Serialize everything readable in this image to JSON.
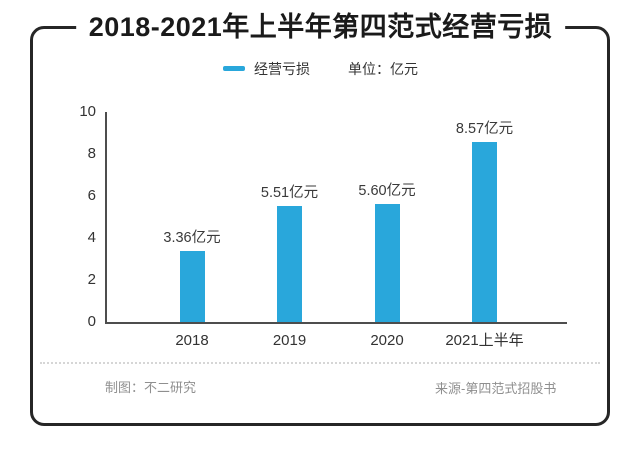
{
  "title": "2018-2021年上半年第四范式经营亏损",
  "legend": {
    "series_label": "经营亏损",
    "unit_label": "单位：亿元"
  },
  "chart_data": {
    "type": "bar",
    "title": "2018-2021年上半年第四范式经营亏损",
    "categories": [
      "2018",
      "2019",
      "2020",
      "2021上半年"
    ],
    "series": [
      {
        "name": "经营亏损",
        "values": [
          3.36,
          5.51,
          5.6,
          8.57
        ],
        "value_labels": [
          "3.36亿元",
          "5.51亿元",
          "5.60亿元",
          "8.57亿元"
        ]
      }
    ],
    "unit": "亿元",
    "xlabel": "",
    "ylabel": "",
    "ylim": [
      0,
      10
    ],
    "yticks": [
      0,
      2,
      4,
      6,
      8,
      10
    ],
    "grid": false,
    "legend_position": "top-center",
    "bar_color": "#29a7db"
  },
  "footer": {
    "left": "制图：不二研究",
    "right": "来源-第四范式招股书"
  }
}
